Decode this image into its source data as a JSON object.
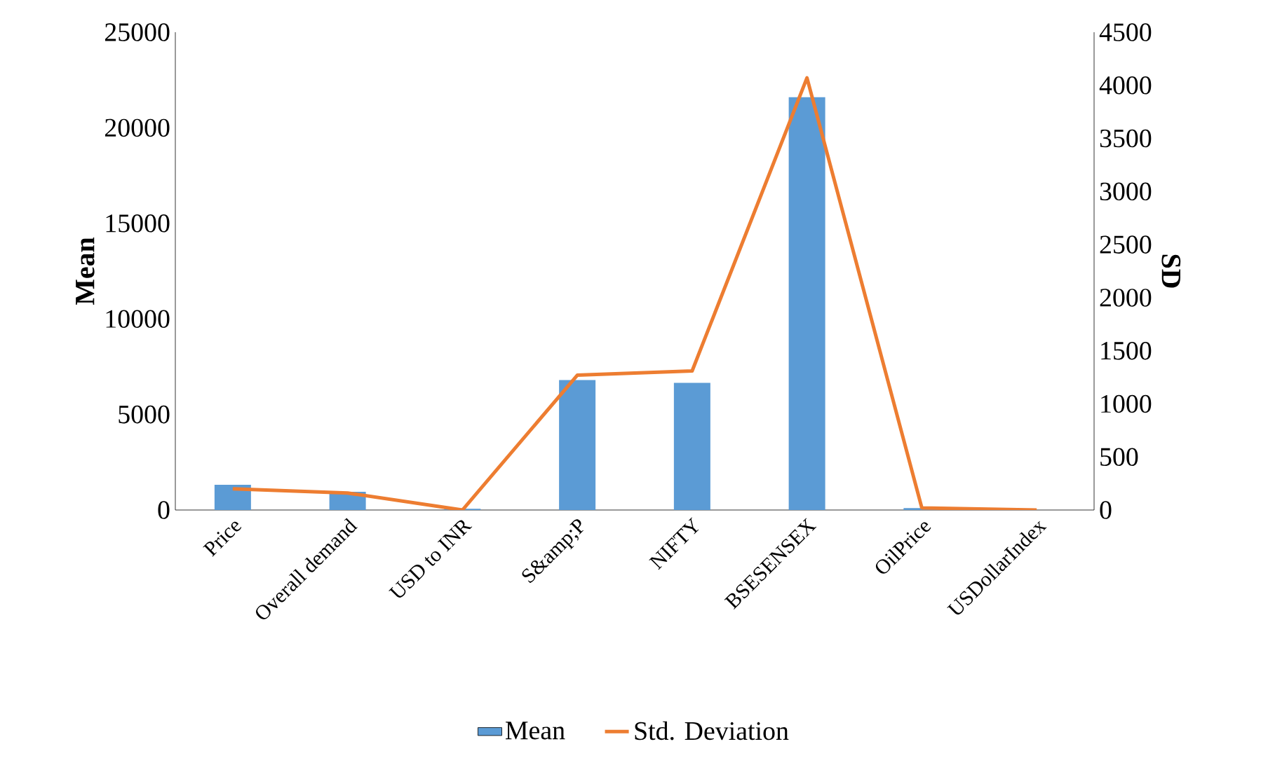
{
  "chart_data": {
    "type": "bar",
    "categories": [
      "Price",
      "Overall demand",
      "USD to INR",
      "S&amp;P",
      "NIFTY",
      "BSESENSEX",
      "OilPrice",
      "USDollarIndex"
    ],
    "series": [
      {
        "name": "Mean",
        "color": "#5b9bd5",
        "values": [
          1320,
          950,
          60,
          6800,
          6650,
          21600,
          100,
          null
        ]
      },
      {
        "name": "Std. Deviation",
        "type": "line",
        "axis": "y2",
        "color": "#ed7d31",
        "values": [
          200,
          160,
          0,
          1270,
          1310,
          4070,
          20,
          0
        ]
      }
    ],
    "ylabel": "Mean",
    "y2label": "SD",
    "ylim": [
      0,
      25000
    ],
    "yticks": [
      0,
      5000,
      10000,
      15000,
      20000,
      25000
    ],
    "y2lim": [
      0,
      4500
    ],
    "y2ticks": [
      0,
      500,
      1000,
      1500,
      2000,
      2500,
      3000,
      3500,
      4000,
      4500
    ],
    "legend": "bottom",
    "grid": false,
    "marker": "none"
  }
}
